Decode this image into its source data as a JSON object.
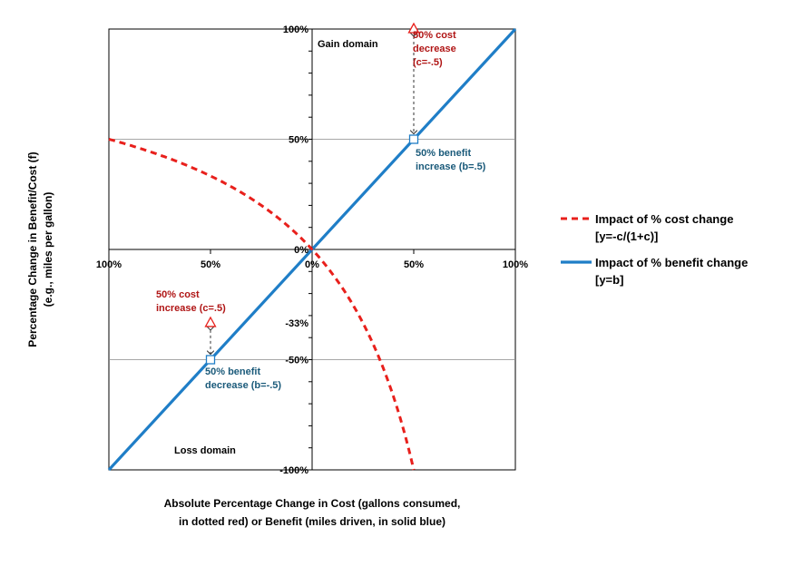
{
  "chart_data": {
    "type": "line",
    "title": "",
    "xlabel": [
      "Absolute Percentage Change in Cost (gallons consumed,",
      "in dotted red) or Benefit (miles driven, in solid blue)"
    ],
    "ylabel": [
      "Percentage Change in Benefit/Cost (f)",
      "(e.g., miles per gallon)"
    ],
    "xlim": [
      -1,
      1
    ],
    "ylim": [
      -1,
      1
    ],
    "x_tick_labels": [
      "100%",
      "50%",
      "0%",
      "50%",
      "100%"
    ],
    "y_tick_labels": [
      "100%",
      "50%",
      "0%",
      "-33%",
      "-50%",
      "-100%"
    ],
    "x_ticks": [
      -1,
      -0.5,
      0,
      0.5,
      1
    ],
    "y_ticks": [
      1,
      0.5,
      0,
      -0.333,
      -0.5,
      -1
    ],
    "grid": "horizontal at 50% and -50%",
    "legend_position": "right",
    "series": [
      {
        "name": [
          "Impact of % cost change",
          "[y=-c/(1+c)]"
        ],
        "style": "dashed",
        "color": "#e8201c",
        "formula": "y = -c/(1+c)",
        "x_range": [
          -1,
          0.5
        ]
      },
      {
        "name": [
          "Impact of % benefit change",
          "[y=b]"
        ],
        "style": "solid",
        "color": "#1f7ec7",
        "formula": "y = b",
        "x_range": [
          -1,
          1
        ]
      }
    ],
    "annotations": [
      {
        "text": [
          "50% cost",
          "decrease",
          "(c=-.5)"
        ],
        "color": "#b01515"
      },
      {
        "text": [
          "50% benefit",
          "increase (b=.5)"
        ],
        "color": "#1a5a7a"
      },
      {
        "text": [
          "50% cost",
          "increase (c=.5)"
        ],
        "color": "#b01515"
      },
      {
        "text": [
          "50% benefit",
          "decrease (b=-.5)"
        ],
        "color": "#1a5a7a"
      },
      {
        "text": [
          "Gain domain"
        ],
        "color": "#000000"
      },
      {
        "text": [
          "Loss domain"
        ],
        "color": "#000000"
      }
    ],
    "markers": [
      {
        "x": 0.5,
        "y": 1,
        "shape": "triangle",
        "color": "#e8201c"
      },
      {
        "x": 0.5,
        "y": 0.5,
        "shape": "square",
        "color": "#1f7ec7"
      },
      {
        "x": -0.5,
        "y": -0.333,
        "shape": "triangle",
        "color": "#e8201c"
      },
      {
        "x": -0.5,
        "y": -0.5,
        "shape": "square",
        "color": "#1f7ec7"
      }
    ]
  }
}
